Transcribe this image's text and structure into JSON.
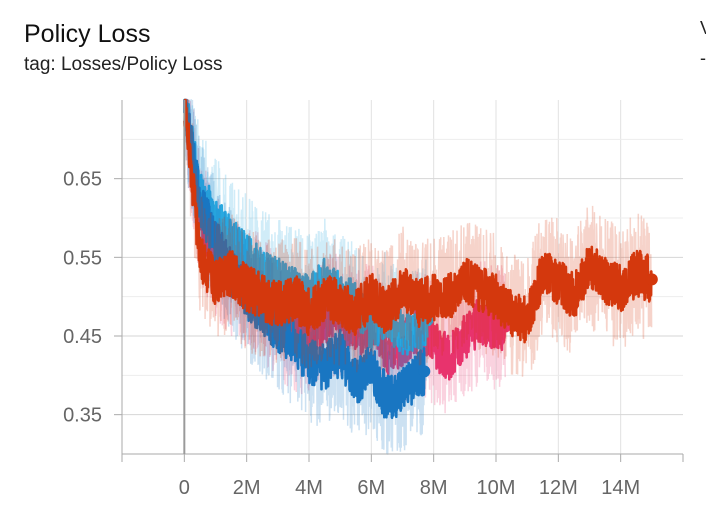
{
  "header": {
    "title": "Policy Loss",
    "subtitle": "tag: Losses/Policy Loss",
    "edge_glyph_top": "V",
    "edge_glyph_bottom": "-"
  },
  "chart_data": {
    "type": "line",
    "title": "Policy Loss",
    "subtitle": "tag: Losses/Policy Loss",
    "xlabel": "",
    "ylabel": "",
    "xlim": [
      -2000000,
      16000000
    ],
    "ylim": [
      0.3,
      0.75
    ],
    "x_ticks": [
      0,
      2000000,
      4000000,
      6000000,
      8000000,
      10000000,
      12000000,
      14000000
    ],
    "x_tick_labels": [
      "0",
      "2M",
      "4M",
      "6M",
      "8M",
      "10M",
      "12M",
      "14M"
    ],
    "y_ticks": [
      0.35,
      0.45,
      0.55,
      0.65
    ],
    "y_tick_labels": [
      "0.35",
      "0.45",
      "0.55",
      "0.65"
    ],
    "grid": true,
    "legend": "none",
    "series": [
      {
        "color": "#e8336d",
        "x": [
          0,
          500000,
          1000000,
          1500000,
          2000000,
          2500000,
          3000000,
          3500000,
          4000000,
          4500000,
          5000000,
          5500000,
          6000000,
          6500000,
          7000000,
          7500000,
          8000000,
          8500000,
          9000000,
          9500000,
          10000000,
          10300000
        ],
        "y": [
          0.75,
          0.6,
          0.55,
          0.53,
          0.51,
          0.5,
          0.47,
          0.46,
          0.45,
          0.47,
          0.48,
          0.45,
          0.47,
          0.43,
          0.44,
          0.46,
          0.44,
          0.42,
          0.45,
          0.47,
          0.46,
          0.462
        ]
      },
      {
        "color": "#29a9e0",
        "x": [
          0,
          500000,
          1000000,
          1500000,
          2000000,
          2500000,
          3000000,
          3500000,
          4000000,
          4500000,
          5000000,
          5500000,
          6000000,
          6500000,
          7000000,
          7500000,
          7800000
        ],
        "y": [
          0.75,
          0.63,
          0.6,
          0.57,
          0.55,
          0.53,
          0.52,
          0.51,
          0.5,
          0.52,
          0.5,
          0.49,
          0.46,
          0.48,
          0.45,
          0.46,
          0.47
        ]
      },
      {
        "color": "#1976c2",
        "x": [
          0,
          500000,
          1000000,
          1500000,
          2000000,
          2500000,
          3000000,
          3500000,
          4000000,
          4500000,
          5000000,
          5500000,
          6000000,
          6500000,
          7000000,
          7500000,
          7700000
        ],
        "y": [
          0.75,
          0.62,
          0.57,
          0.53,
          0.5,
          0.48,
          0.46,
          0.44,
          0.42,
          0.41,
          0.43,
          0.39,
          0.41,
          0.37,
          0.38,
          0.4,
          0.405
        ]
      },
      {
        "color": "#d4380d",
        "x": [
          0,
          500000,
          1000000,
          1500000,
          2000000,
          2500000,
          3000000,
          3500000,
          4000000,
          4500000,
          5000000,
          5500000,
          6000000,
          6500000,
          7000000,
          7500000,
          8000000,
          8500000,
          9000000,
          9500000,
          10000000,
          10500000,
          11000000,
          11500000,
          12000000,
          12500000,
          13000000,
          13500000,
          14000000,
          14500000,
          15000000
        ],
        "y": [
          0.75,
          0.55,
          0.52,
          0.53,
          0.51,
          0.5,
          0.49,
          0.5,
          0.48,
          0.5,
          0.49,
          0.48,
          0.5,
          0.48,
          0.51,
          0.49,
          0.5,
          0.5,
          0.52,
          0.51,
          0.5,
          0.48,
          0.47,
          0.53,
          0.52,
          0.5,
          0.54,
          0.52,
          0.51,
          0.53,
          0.522
        ]
      }
    ]
  }
}
